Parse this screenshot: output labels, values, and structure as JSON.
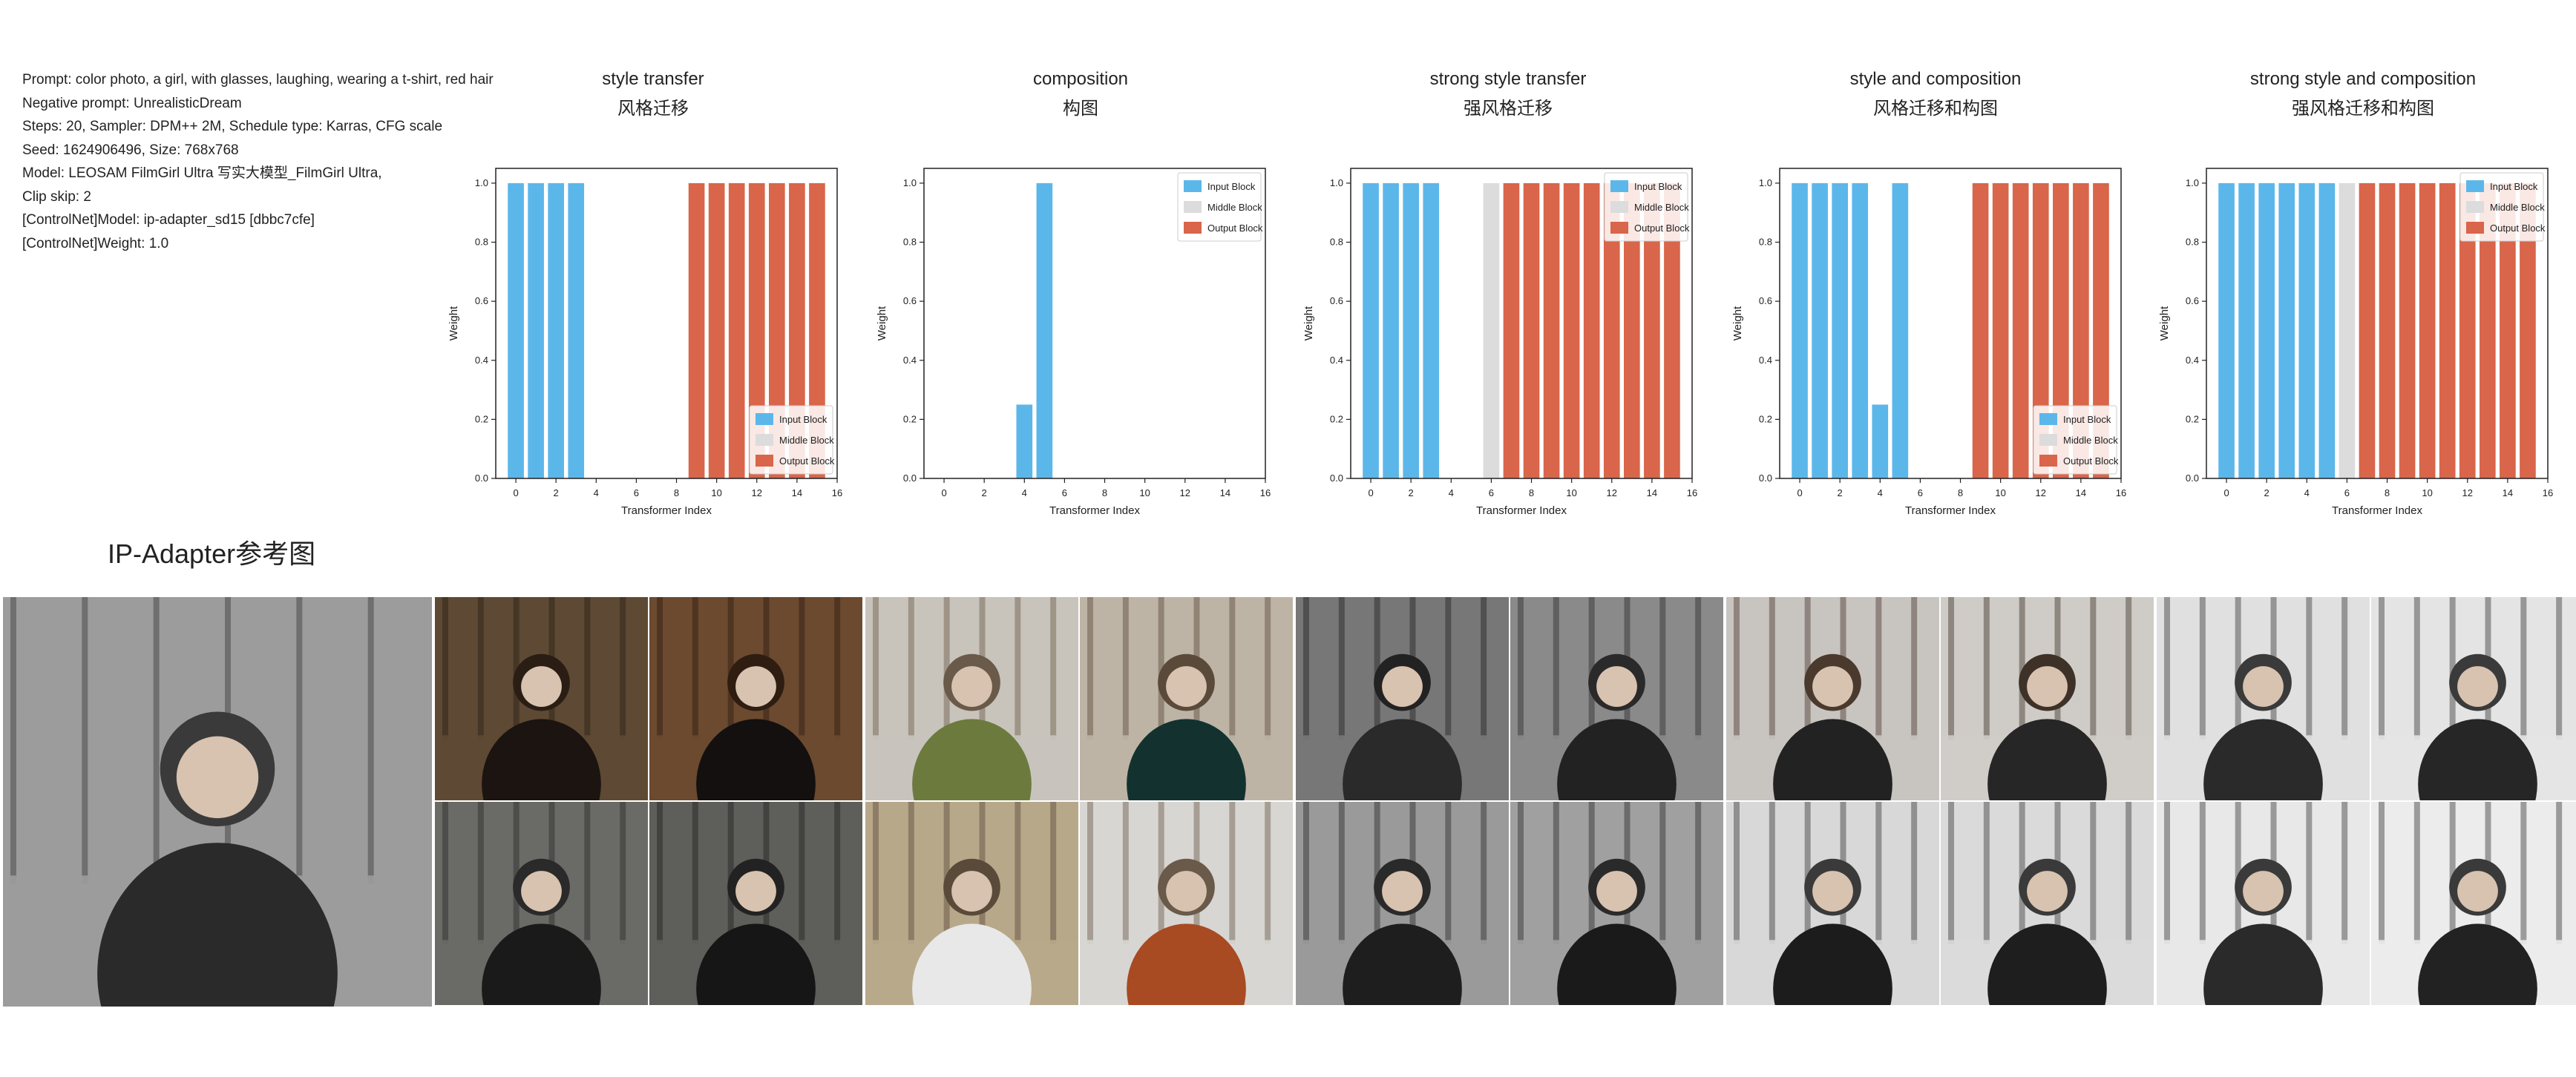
{
  "info": {
    "lines": [
      "Prompt: color photo, a girl, with glasses, laughing, wearing a t-shirt, red hair",
      "Negative prompt: UnrealisticDream",
      "Steps: 20, Sampler: DPM++ 2M, Schedule type: Karras, CFG scale",
      "Seed: 1624906496, Size: 768x768",
      "Model: LEOSAM FilmGirl Ultra 写实大模型_FilmGirl Ultra,",
      "Clip skip: 2",
      "[ControlNet]Model: ip-adapter_sd15 [dbbc7cfe]",
      "[ControlNet]Weight: 1.0"
    ]
  },
  "reference_label": "IP-Adapter参考图",
  "colors": {
    "input": "#5bb7ea",
    "middle": "#dcdcdc",
    "output": "#d9654a"
  },
  "chart_data": [
    {
      "type": "bar",
      "title": "style transfer",
      "subtitle": "风格迁移",
      "xlabel": "Transformer Index",
      "ylabel": "Weight",
      "xlim": [
        -1,
        16
      ],
      "ylim": [
        0,
        1.05
      ],
      "xticks": [
        "0",
        "2",
        "4",
        "6",
        "8",
        "10",
        "12",
        "14",
        "16"
      ],
      "yticks": [
        "0.0",
        "0.2",
        "0.4",
        "0.6",
        "0.8",
        "1.0"
      ],
      "legend_position": "lower-right",
      "legend": [
        "Input Block",
        "Middle Block",
        "Output Block"
      ],
      "series": [
        {
          "name": "Input Block",
          "x": [
            0,
            1,
            2,
            3,
            4,
            5
          ],
          "values": [
            1,
            1,
            1,
            1,
            0,
            0
          ]
        },
        {
          "name": "Middle Block",
          "x": [
            6
          ],
          "values": [
            0
          ]
        },
        {
          "name": "Output Block",
          "x": [
            7,
            8,
            9,
            10,
            11,
            12,
            13,
            14,
            15
          ],
          "values": [
            0,
            0,
            1,
            1,
            1,
            1,
            1,
            1,
            1
          ]
        }
      ]
    },
    {
      "type": "bar",
      "title": "composition",
      "subtitle": "构图",
      "xlabel": "Transformer Index",
      "ylabel": "Weight",
      "xlim": [
        -1,
        16
      ],
      "ylim": [
        0,
        1.05
      ],
      "xticks": [
        "0",
        "2",
        "4",
        "6",
        "8",
        "10",
        "12",
        "14",
        "16"
      ],
      "yticks": [
        "0.0",
        "0.2",
        "0.4",
        "0.6",
        "0.8",
        "1.0"
      ],
      "legend_position": "upper-right",
      "legend": [
        "Input Block",
        "Middle Block",
        "Output Block"
      ],
      "series": [
        {
          "name": "Input Block",
          "x": [
            0,
            1,
            2,
            3,
            4,
            5
          ],
          "values": [
            0,
            0,
            0,
            0,
            0.25,
            1
          ]
        },
        {
          "name": "Middle Block",
          "x": [
            6
          ],
          "values": [
            0
          ]
        },
        {
          "name": "Output Block",
          "x": [
            7,
            8,
            9,
            10,
            11,
            12,
            13,
            14,
            15
          ],
          "values": [
            0,
            0,
            0,
            0,
            0,
            0,
            0,
            0,
            0
          ]
        }
      ]
    },
    {
      "type": "bar",
      "title": "strong style transfer",
      "subtitle": "强风格迁移",
      "xlabel": "Transformer Index",
      "ylabel": "Weight",
      "xlim": [
        -1,
        16
      ],
      "ylim": [
        0,
        1.05
      ],
      "xticks": [
        "0",
        "2",
        "4",
        "6",
        "8",
        "10",
        "12",
        "14",
        "16"
      ],
      "yticks": [
        "0.0",
        "0.2",
        "0.4",
        "0.6",
        "0.8",
        "1.0"
      ],
      "legend_position": "upper-right",
      "legend": [
        "Input Block",
        "Middle Block",
        "Output Block"
      ],
      "series": [
        {
          "name": "Input Block",
          "x": [
            0,
            1,
            2,
            3,
            4,
            5
          ],
          "values": [
            1,
            1,
            1,
            1,
            0,
            0
          ]
        },
        {
          "name": "Middle Block",
          "x": [
            6
          ],
          "values": [
            1
          ]
        },
        {
          "name": "Output Block",
          "x": [
            7,
            8,
            9,
            10,
            11,
            12,
            13,
            14,
            15
          ],
          "values": [
            1,
            1,
            1,
            1,
            1,
            1,
            1,
            1,
            1
          ]
        }
      ]
    },
    {
      "type": "bar",
      "title": "style and composition",
      "subtitle": "风格迁移和构图",
      "xlabel": "Transformer Index",
      "ylabel": "Weight",
      "xlim": [
        -1,
        16
      ],
      "ylim": [
        0,
        1.05
      ],
      "xticks": [
        "0",
        "2",
        "4",
        "6",
        "8",
        "10",
        "12",
        "14",
        "16"
      ],
      "yticks": [
        "0.0",
        "0.2",
        "0.4",
        "0.6",
        "0.8",
        "1.0"
      ],
      "legend_position": "lower-right",
      "legend": [
        "Input Block",
        "Middle Block",
        "Output Block"
      ],
      "series": [
        {
          "name": "Input Block",
          "x": [
            0,
            1,
            2,
            3,
            4,
            5
          ],
          "values": [
            1,
            1,
            1,
            1,
            0.25,
            1
          ]
        },
        {
          "name": "Middle Block",
          "x": [
            6
          ],
          "values": [
            0
          ]
        },
        {
          "name": "Output Block",
          "x": [
            7,
            8,
            9,
            10,
            11,
            12,
            13,
            14,
            15
          ],
          "values": [
            0,
            0,
            1,
            1,
            1,
            1,
            1,
            1,
            1
          ]
        }
      ]
    },
    {
      "type": "bar",
      "title": "strong style and composition",
      "subtitle": "强风格迁移和构图",
      "xlabel": "Transformer Index",
      "ylabel": "Weight",
      "xlim": [
        -1,
        16
      ],
      "ylim": [
        0,
        1.05
      ],
      "xticks": [
        "0",
        "2",
        "4",
        "6",
        "8",
        "10",
        "12",
        "14",
        "16"
      ],
      "yticks": [
        "0.0",
        "0.2",
        "0.4",
        "0.6",
        "0.8",
        "1.0"
      ],
      "legend_position": "upper-right",
      "legend": [
        "Input Block",
        "Middle Block",
        "Output Block"
      ],
      "series": [
        {
          "name": "Input Block",
          "x": [
            0,
            1,
            2,
            3,
            4,
            5
          ],
          "values": [
            1,
            1,
            1,
            1,
            1,
            1
          ]
        },
        {
          "name": "Middle Block",
          "x": [
            6
          ],
          "values": [
            1
          ]
        },
        {
          "name": "Output Block",
          "x": [
            7,
            8,
            9,
            10,
            11,
            12,
            13,
            14,
            15
          ],
          "values": [
            1,
            1,
            1,
            1,
            1,
            1,
            1,
            1,
            1
          ]
        }
      ]
    }
  ]
}
